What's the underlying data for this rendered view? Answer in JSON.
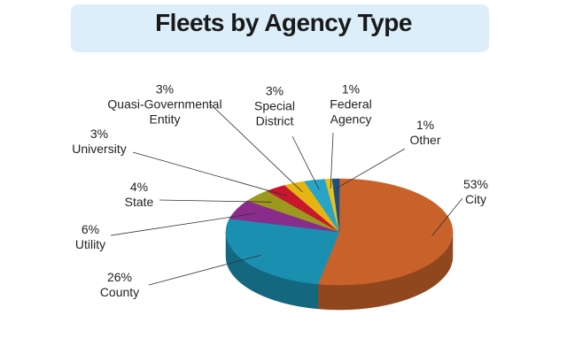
{
  "chart_data": {
    "type": "pie3d",
    "title": "Fleets by Agency Type",
    "categories": [
      "City",
      "County",
      "Utility",
      "State",
      "University",
      "Quasi-Governmental Entity",
      "Special District",
      "Federal Agency",
      "Other"
    ],
    "values": [
      53,
      26,
      6,
      4,
      3,
      3,
      3,
      1,
      1
    ],
    "value_labels": [
      "53%",
      "26%",
      "6%",
      "4%",
      "3%",
      "3%",
      "3%",
      "1%",
      "1%"
    ],
    "colors": [
      "#c9622a",
      "#1a8fb0",
      "#8a2c8c",
      "#9b9a1e",
      "#c8172e",
      "#e6b512",
      "#2aa3c9",
      "#e8c21a",
      "#1f4f7e"
    ]
  }
}
